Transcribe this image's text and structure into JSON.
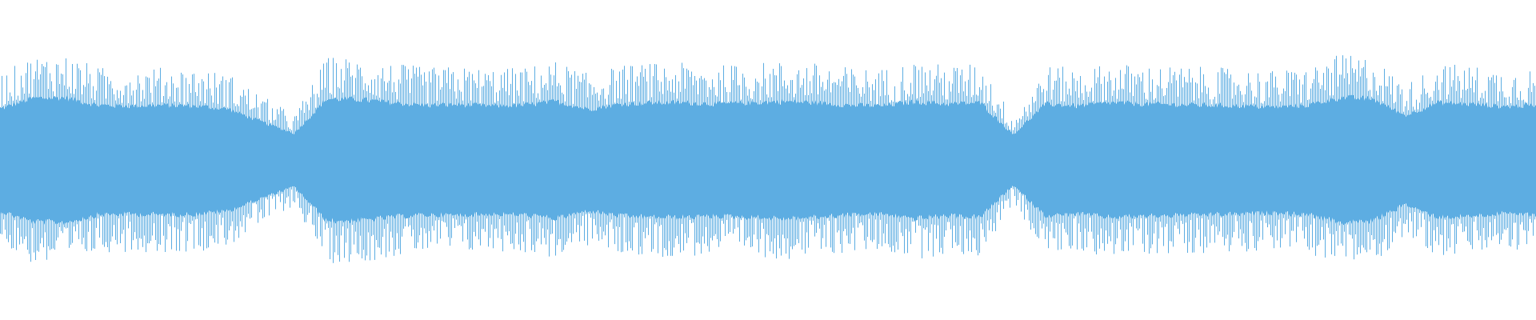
{
  "waveform": {
    "color": "#5dade2",
    "background": "#ffffff",
    "amplitude_envelope": [
      0.8,
      0.97,
      0.98,
      0.86,
      0.85,
      0.86,
      0.85,
      0.8,
      0.6,
      0.42,
      0.96,
      0.95,
      0.9,
      0.86,
      0.87,
      0.85,
      0.86,
      0.92,
      0.8,
      0.88,
      0.9,
      0.9,
      0.88,
      0.9,
      0.92,
      0.9,
      0.86,
      0.85,
      0.92,
      0.88,
      0.9,
      0.4,
      0.88,
      0.85,
      0.9,
      0.88,
      0.87,
      0.86,
      0.85,
      0.83,
      0.86,
      0.98,
      0.96,
      0.7,
      0.9,
      0.88,
      0.84,
      0.86
    ]
  }
}
